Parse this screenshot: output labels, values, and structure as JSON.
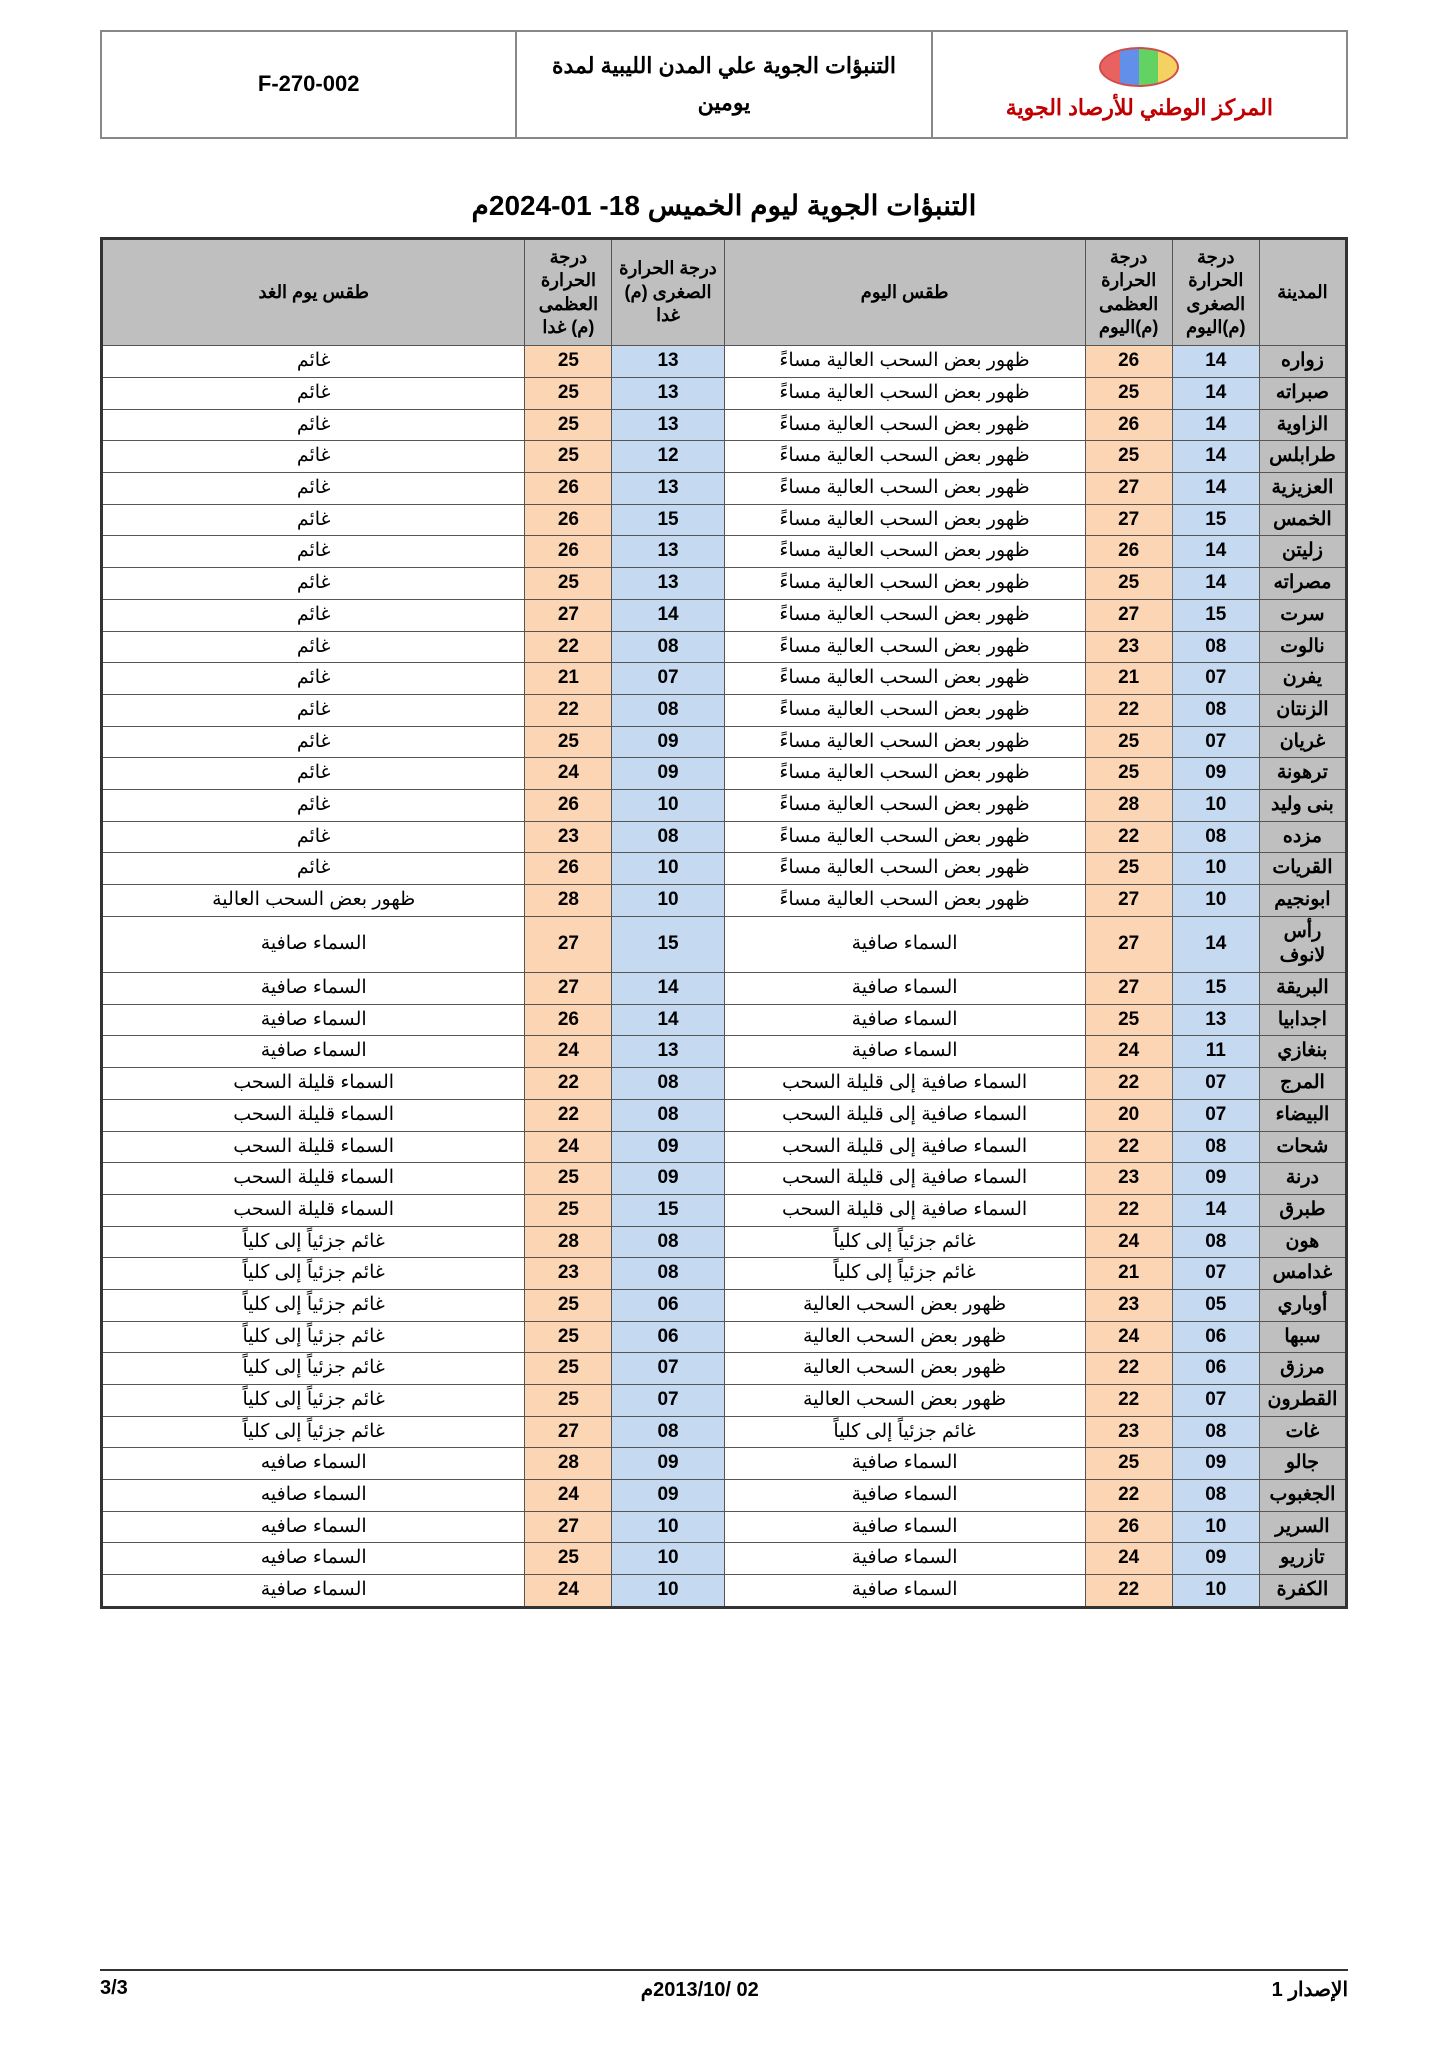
{
  "header": {
    "code": "F-270-002",
    "doc_title": "التنبؤات الجوية علي المدن الليبية لمدة يومين",
    "org": "المركز الوطني للأرصاد الجوية"
  },
  "page_title": "التنبؤات الجوية ليوم الخميس  18- 01-2024م",
  "columns": {
    "city": "المدينة",
    "min_today": "درجة الحرارة الصغرى (م)اليوم",
    "max_today": "درجة الحرارة العظمى (م)اليوم",
    "weather_today": "طقس اليوم",
    "min_tomorrow": "درجة الحرارة الصغرى (م) غدا",
    "max_tomorrow": "درجة الحرارة العظمى (م) غدا",
    "weather_tomorrow": "طقس يوم الغد"
  },
  "rows": [
    {
      "city": "زواره",
      "min": "14",
      "max": "26",
      "w": "ظهور بعض السحب العالية مساءً",
      "min2": "13",
      "max2": "25",
      "w2": "غائم"
    },
    {
      "city": "صبراته",
      "min": "14",
      "max": "25",
      "w": "ظهور بعض السحب العالية مساءً",
      "min2": "13",
      "max2": "25",
      "w2": "غائم"
    },
    {
      "city": "الزاوية",
      "min": "14",
      "max": "26",
      "w": "ظهور بعض السحب العالية مساءً",
      "min2": "13",
      "max2": "25",
      "w2": "غائم"
    },
    {
      "city": "طرابلس",
      "min": "14",
      "max": "25",
      "w": "ظهور بعض السحب العالية مساءً",
      "min2": "12",
      "max2": "25",
      "w2": "غائم"
    },
    {
      "city": "العزيزية",
      "min": "14",
      "max": "27",
      "w": "ظهور بعض السحب العالية مساءً",
      "min2": "13",
      "max2": "26",
      "w2": "غائم"
    },
    {
      "city": "الخمس",
      "min": "15",
      "max": "27",
      "w": "ظهور بعض السحب العالية مساءً",
      "min2": "15",
      "max2": "26",
      "w2": "غائم"
    },
    {
      "city": "زليتن",
      "min": "14",
      "max": "26",
      "w": "ظهور بعض السحب العالية مساءً",
      "min2": "13",
      "max2": "26",
      "w2": "غائم"
    },
    {
      "city": "مصراته",
      "min": "14",
      "max": "25",
      "w": "ظهور بعض السحب العالية مساءً",
      "min2": "13",
      "max2": "25",
      "w2": "غائم"
    },
    {
      "city": "سرت",
      "min": "15",
      "max": "27",
      "w": "ظهور بعض السحب العالية مساءً",
      "min2": "14",
      "max2": "27",
      "w2": "غائم"
    },
    {
      "city": "نالوت",
      "min": "08",
      "max": "23",
      "w": "ظهور بعض السحب العالية مساءً",
      "min2": "08",
      "max2": "22",
      "w2": "غائم"
    },
    {
      "city": "يفرن",
      "min": "07",
      "max": "21",
      "w": "ظهور بعض السحب العالية مساءً",
      "min2": "07",
      "max2": "21",
      "w2": "غائم"
    },
    {
      "city": "الزنتان",
      "min": "08",
      "max": "22",
      "w": "ظهور بعض السحب العالية مساءً",
      "min2": "08",
      "max2": "22",
      "w2": "غائم"
    },
    {
      "city": "غريان",
      "min": "07",
      "max": "25",
      "w": "ظهور بعض السحب العالية مساءً",
      "min2": "09",
      "max2": "25",
      "w2": "غائم"
    },
    {
      "city": "ترهونة",
      "min": "09",
      "max": "25",
      "w": "ظهور بعض السحب العالية مساءً",
      "min2": "09",
      "max2": "24",
      "w2": "غائم"
    },
    {
      "city": "بنى وليد",
      "min": "10",
      "max": "28",
      "w": "ظهور بعض السحب العالية مساءً",
      "min2": "10",
      "max2": "26",
      "w2": "غائم"
    },
    {
      "city": "مزده",
      "min": "08",
      "max": "22",
      "w": "ظهور بعض السحب العالية مساءً",
      "min2": "08",
      "max2": "23",
      "w2": "غائم"
    },
    {
      "city": "القريات",
      "min": "10",
      "max": "25",
      "w": "ظهور بعض السحب العالية مساءً",
      "min2": "10",
      "max2": "26",
      "w2": "غائم"
    },
    {
      "city": "ابونجيم",
      "min": "10",
      "max": "27",
      "w": "ظهور بعض السحب العالية مساءً",
      "min2": "10",
      "max2": "28",
      "w2": "ظهور بعض السحب العالية"
    },
    {
      "city": "رأس لانوف",
      "min": "14",
      "max": "27",
      "w": "السماء صافية",
      "min2": "15",
      "max2": "27",
      "w2": "السماء صافية"
    },
    {
      "city": "البريقة",
      "min": "15",
      "max": "27",
      "w": "السماء صافية",
      "min2": "14",
      "max2": "27",
      "w2": "السماء صافية"
    },
    {
      "city": "اجدابيا",
      "min": "13",
      "max": "25",
      "w": "السماء صافية",
      "min2": "14",
      "max2": "26",
      "w2": "السماء صافية"
    },
    {
      "city": "بنغازي",
      "min": "11",
      "max": "24",
      "w": "السماء صافية",
      "min2": "13",
      "max2": "24",
      "w2": "السماء صافية"
    },
    {
      "city": "المرج",
      "min": "07",
      "max": "22",
      "w": "السماء صافية إلى قليلة السحب",
      "min2": "08",
      "max2": "22",
      "w2": "السماء قليلة السحب"
    },
    {
      "city": "البيضاء",
      "min": "07",
      "max": "20",
      "w": "السماء صافية إلى قليلة السحب",
      "min2": "08",
      "max2": "22",
      "w2": "السماء قليلة السحب"
    },
    {
      "city": "شحات",
      "min": "08",
      "max": "22",
      "w": "السماء صافية إلى قليلة السحب",
      "min2": "09",
      "max2": "24",
      "w2": "السماء قليلة السحب"
    },
    {
      "city": "درنة",
      "min": "09",
      "max": "23",
      "w": "السماء صافية إلى قليلة السحب",
      "min2": "09",
      "max2": "25",
      "w2": "السماء قليلة السحب"
    },
    {
      "city": "طبرق",
      "min": "14",
      "max": "22",
      "w": "السماء صافية إلى قليلة السحب",
      "min2": "15",
      "max2": "25",
      "w2": "السماء قليلة السحب"
    },
    {
      "city": "هون",
      "min": "08",
      "max": "24",
      "w": "غائم جزئياً إلى كلياً",
      "min2": "08",
      "max2": "28",
      "w2": "غائم جزئياً إلى كلياً"
    },
    {
      "city": "غدامس",
      "min": "07",
      "max": "21",
      "w": "غائم جزئياً إلى كلياً",
      "min2": "08",
      "max2": "23",
      "w2": "غائم جزئياً إلى كلياً"
    },
    {
      "city": "أوباري",
      "min": "05",
      "max": "23",
      "w": "ظهور بعض السحب العالية",
      "min2": "06",
      "max2": "25",
      "w2": "غائم جزئياً إلى كلياً"
    },
    {
      "city": "سبها",
      "min": "06",
      "max": "24",
      "w": "ظهور بعض السحب العالية",
      "min2": "06",
      "max2": "25",
      "w2": "غائم جزئياً إلى كلياً"
    },
    {
      "city": "مرزق",
      "min": "06",
      "max": "22",
      "w": "ظهور بعض السحب العالية",
      "min2": "07",
      "max2": "25",
      "w2": "غائم جزئياً إلى كلياً"
    },
    {
      "city": "القطرون",
      "min": "07",
      "max": "22",
      "w": "ظهور بعض السحب العالية",
      "min2": "07",
      "max2": "25",
      "w2": "غائم جزئياً إلى كلياً"
    },
    {
      "city": "غات",
      "min": "08",
      "max": "23",
      "w": "غائم جزئياً إلى كلياً",
      "min2": "08",
      "max2": "27",
      "w2": "غائم جزئياً إلى كلياً"
    },
    {
      "city": "جالو",
      "min": "09",
      "max": "25",
      "w": "السماء صافية",
      "min2": "09",
      "max2": "28",
      "w2": "السماء صافيه"
    },
    {
      "city": "الجغبوب",
      "min": "08",
      "max": "22",
      "w": "السماء صافية",
      "min2": "09",
      "max2": "24",
      "w2": "السماء صافيه"
    },
    {
      "city": "السرير",
      "min": "10",
      "max": "26",
      "w": "السماء صافية",
      "min2": "10",
      "max2": "27",
      "w2": "السماء صافيه"
    },
    {
      "city": "تازريو",
      "min": "09",
      "max": "24",
      "w": "السماء صافية",
      "min2": "10",
      "max2": "25",
      "w2": "السماء صافيه"
    },
    {
      "city": "الكفرة",
      "min": "10",
      "max": "22",
      "w": "السماء صافية",
      "min2": "10",
      "max2": "24",
      "w2": "السماء صافية"
    }
  ],
  "footer": {
    "issue": "الإصدار 1",
    "date": "02 /2013/10م",
    "page": "3/3"
  },
  "colors": {
    "header_gray": "#bfbfbf",
    "min_blue": "#c5d9f1",
    "max_orange": "#fcd5b4",
    "org_red": "#c00000",
    "border": "#555555"
  }
}
